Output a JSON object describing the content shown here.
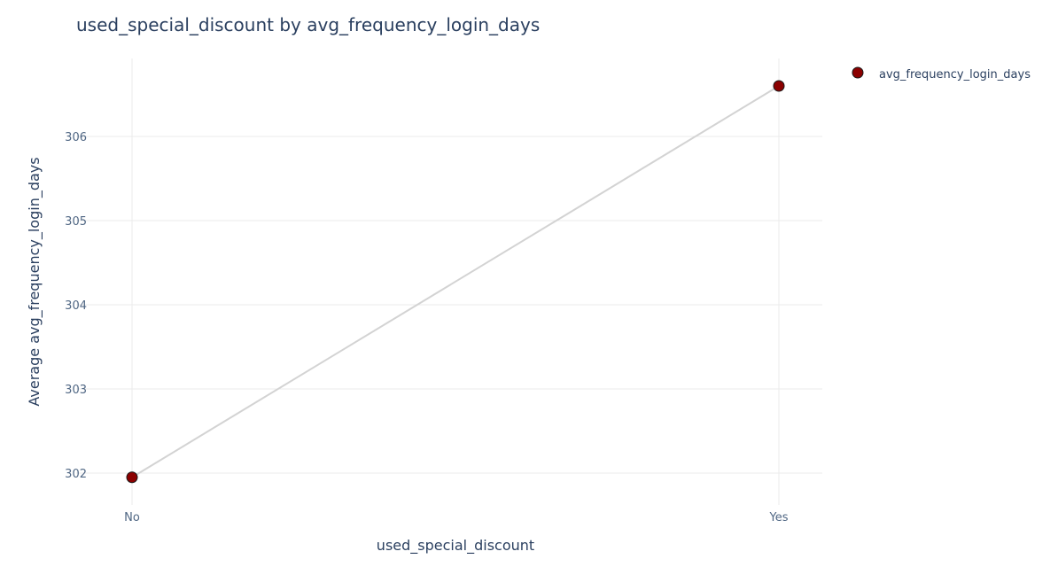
{
  "chart_data": {
    "type": "line",
    "title": "used_special_discount by avg_frequency_login_days",
    "xlabel": "used_special_discount",
    "ylabel": "Average avg_frequency_login_days",
    "categories": [
      "No",
      "Yes"
    ],
    "series": [
      {
        "name": "avg_frequency_login_days",
        "values": [
          301.95,
          306.6
        ]
      }
    ],
    "ylim": [
      301.6,
      307.0
    ],
    "yticks": [
      302,
      303,
      304,
      305,
      306
    ],
    "grid": true,
    "legend_position": "top-right",
    "colors": {
      "marker": "#8b0000",
      "marker_edge": "#1a1a1a",
      "line": "#d3d3d3",
      "grid": "#ebebeb",
      "text": "#2a3f5f",
      "tick": "#506784"
    }
  }
}
